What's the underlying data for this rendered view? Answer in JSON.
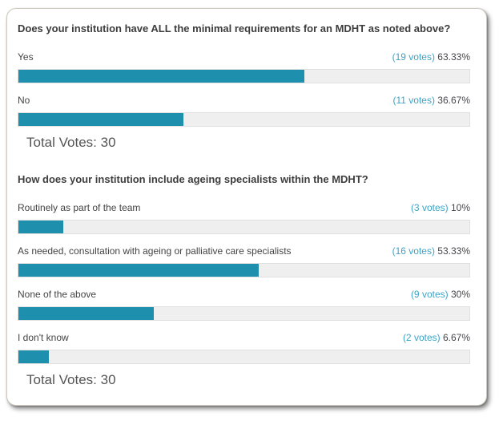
{
  "card": {
    "polls": [
      {
        "question": "Does your institution have ALL the minimal requirements for an MDHT as noted above?",
        "total_label": "Total Votes: 30",
        "answers": [
          {
            "label": "Yes",
            "votes_text": "(19 votes)",
            "percent_text": "63.33%",
            "percent": 63.33
          },
          {
            "label": "No",
            "votes_text": "(11 votes)",
            "percent_text": "36.67%",
            "percent": 36.67
          }
        ]
      },
      {
        "question": "How does your institution include ageing specialists within the MDHT?",
        "total_label": "Total Votes: 30",
        "answers": [
          {
            "label": "Routinely as part of the team",
            "votes_text": "(3 votes)",
            "percent_text": "10%",
            "percent": 10
          },
          {
            "label": "As needed, consultation with ageing or palliative care specialists",
            "votes_text": "(16 votes)",
            "percent_text": "53.33%",
            "percent": 53.33
          },
          {
            "label": "None of the above",
            "votes_text": "(9 votes)",
            "percent_text": "30%",
            "percent": 30
          },
          {
            "label": "I don't know",
            "votes_text": "(2 votes)",
            "percent_text": "6.67%",
            "percent": 6.67
          }
        ]
      }
    ]
  },
  "colors": {
    "bar_fill": "#1e8fac",
    "bar_track": "#efefef",
    "votes_text": "#3da4c7",
    "percent_text": "#45454b",
    "question_text": "#3d3d3d",
    "total_votes_text": "#555555",
    "card_border": "#ccc7bb"
  },
  "chart_data": [
    {
      "type": "bar",
      "orientation": "horizontal",
      "title": "Does your institution have ALL the minimal requirements for an MDHT as noted above?",
      "categories": [
        "Yes",
        "No"
      ],
      "values": [
        63.33,
        36.67
      ],
      "votes": [
        19,
        11
      ],
      "total_votes": 30,
      "unit": "percent",
      "xlim": [
        0,
        100
      ],
      "grid": false,
      "legend": false
    },
    {
      "type": "bar",
      "orientation": "horizontal",
      "title": "How does your institution include ageing specialists within the MDHT?",
      "categories": [
        "Routinely as part of the team",
        "As needed, consultation with ageing or palliative care specialists",
        "None of the above",
        "I don't know"
      ],
      "values": [
        10,
        53.33,
        30,
        6.67
      ],
      "votes": [
        3,
        16,
        9,
        2
      ],
      "total_votes": 30,
      "unit": "percent",
      "xlim": [
        0,
        100
      ],
      "grid": false,
      "legend": false
    }
  ]
}
